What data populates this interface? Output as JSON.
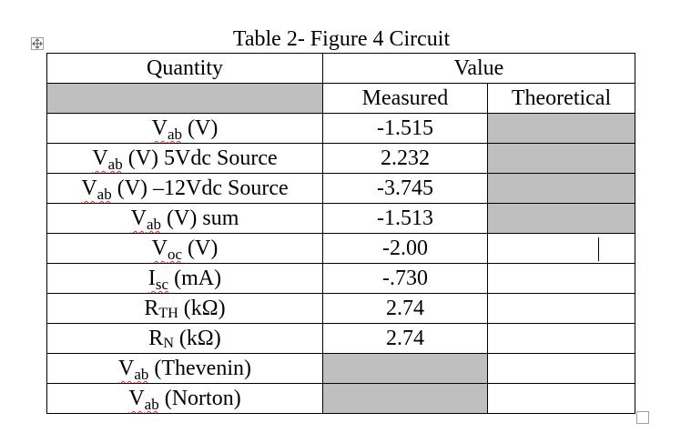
{
  "table": {
    "title": "Table 2- Figure 4 Circuit",
    "headers": {
      "quantity": "Quantity",
      "value": "Value",
      "measured": "Measured",
      "theoretical": "Theoretical"
    },
    "rows": [
      {
        "symbol": "V",
        "sub": "ab",
        "rest": " (V)",
        "measured": "-1.515",
        "theoretical": "",
        "theoretical_shaded": true,
        "measured_shaded": false
      },
      {
        "symbol": "V",
        "sub": "ab",
        "rest": " (V) 5Vdc Source",
        "measured": "2.232",
        "theoretical": "",
        "theoretical_shaded": true,
        "measured_shaded": false
      },
      {
        "symbol": "V",
        "sub": "ab",
        "rest": " (V) –12Vdc Source",
        "measured": "-3.745",
        "theoretical": "",
        "theoretical_shaded": true,
        "measured_shaded": false
      },
      {
        "symbol": "V",
        "sub": "ab",
        "rest": " (V) sum",
        "measured": "-1.513",
        "theoretical": "",
        "theoretical_shaded": true,
        "measured_shaded": false
      },
      {
        "symbol": "V",
        "sub": "oc",
        "rest": " (V)",
        "measured": "-2.00",
        "theoretical": "",
        "theoretical_shaded": false,
        "measured_shaded": false
      },
      {
        "symbol": "I",
        "sub": "sc",
        "rest": " (mA)",
        "measured": "-.730",
        "theoretical": "",
        "theoretical_shaded": false,
        "measured_shaded": false
      },
      {
        "symbol": "R",
        "sub": "TH",
        "rest": " (kΩ)",
        "measured": "2.74",
        "theoretical": "",
        "theoretical_shaded": false,
        "measured_shaded": false
      },
      {
        "symbol": "R",
        "sub": "N",
        "rest": " (kΩ)",
        "measured": "2.74",
        "theoretical": "",
        "theoretical_shaded": false,
        "measured_shaded": false
      },
      {
        "symbol": "V",
        "sub": "ab",
        "rest": " (Thevenin)",
        "measured": "",
        "theoretical": "",
        "theoretical_shaded": false,
        "measured_shaded": true
      },
      {
        "symbol": "V",
        "sub": "ab",
        "rest": " (Norton)",
        "measured": "",
        "theoretical": "",
        "theoretical_shaded": false,
        "measured_shaded": true
      }
    ]
  },
  "colors": {
    "shade": "#bfbfbf",
    "spellcheck_underline": "#e0302b",
    "border": "#000000"
  },
  "icons": {
    "move_handle": "table-move-handle-icon",
    "resize_handle": "table-resize-handle-icon"
  }
}
